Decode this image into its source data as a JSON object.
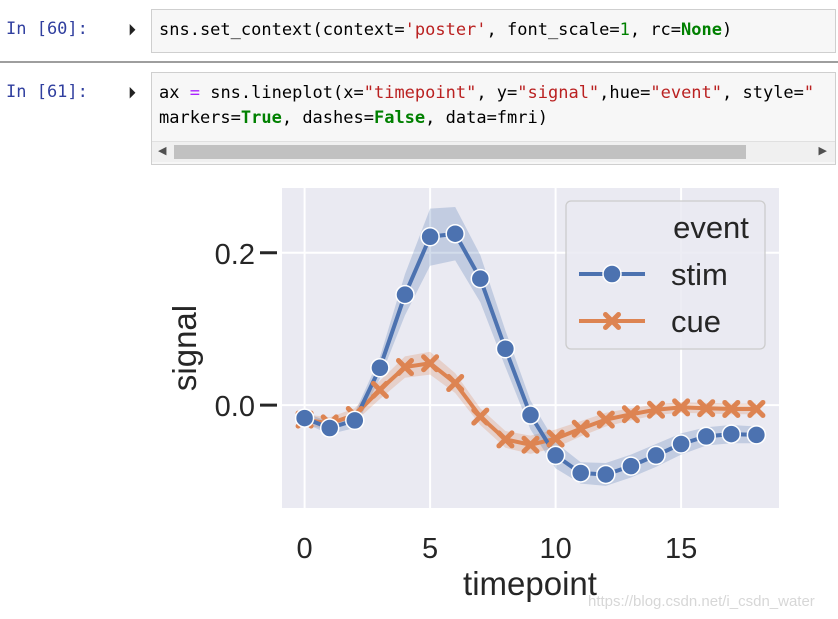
{
  "cells": [
    {
      "prompt": "In  [60]:",
      "code": [
        [
          [
            "sns.set_context(context=",
            ""
          ],
          [
            "'poster'",
            "str"
          ],
          [
            ", font_scale=",
            ""
          ],
          [
            "1",
            "num"
          ],
          [
            ", rc=",
            ""
          ],
          [
            "None",
            "kw"
          ],
          [
            ")",
            ""
          ]
        ]
      ]
    },
    {
      "prompt": "In  [61]:",
      "code": [
        [
          [
            "ax ",
            ""
          ],
          [
            "=",
            "op"
          ],
          [
            " sns.lineplot(x=",
            ""
          ],
          [
            "\"timepoint\"",
            "str"
          ],
          [
            ", y=",
            ""
          ],
          [
            "\"signal\"",
            "str"
          ],
          [
            ",hue=",
            ""
          ],
          [
            "\"event\"",
            "str"
          ],
          [
            ", style=",
            ""
          ],
          [
            "\"",
            "str"
          ]
        ],
        [
          [
            "markers=",
            ""
          ],
          [
            "True",
            "kw"
          ],
          [
            ", dashes=",
            ""
          ],
          [
            "False",
            "kw"
          ],
          [
            ", data=fmri)",
            ""
          ]
        ]
      ]
    }
  ],
  "scroll_left_arrow": "◀",
  "scroll_right_arrow": "▶",
  "run_icon": "⏵",
  "colors": {
    "stim": "#4c72b0",
    "cue": "#dd8452",
    "plot_bg": "#eaeaf2",
    "grid": "#ffffff"
  },
  "chart_data": {
    "type": "line",
    "title": "",
    "xlabel": "timepoint",
    "ylabel": "signal",
    "xlim": [
      -0.9,
      18.9
    ],
    "ylim": [
      -0.135,
      0.285
    ],
    "xticks": [
      0,
      5,
      10,
      15
    ],
    "xtick_labels": [
      "0",
      "5",
      "10",
      "15"
    ],
    "yticks": [
      0.0,
      0.2
    ],
    "ytick_labels": [
      "0.0",
      "0.2"
    ],
    "grid": true,
    "legend": {
      "title": "event",
      "placement": "top-right"
    },
    "x": [
      0,
      1,
      2,
      3,
      4,
      5,
      6,
      7,
      8,
      9,
      10,
      11,
      12,
      13,
      14,
      15,
      16,
      17,
      18
    ],
    "series": [
      {
        "name": "stim",
        "marker": "circle",
        "values": [
          -0.017,
          -0.03,
          -0.02,
          0.049,
          0.145,
          0.221,
          0.225,
          0.166,
          0.074,
          -0.013,
          -0.066,
          -0.089,
          -0.091,
          -0.08,
          -0.066,
          -0.051,
          -0.041,
          -0.038,
          -0.039
        ],
        "ci_low": [
          -0.024,
          -0.038,
          -0.03,
          0.035,
          0.118,
          0.183,
          0.19,
          0.135,
          0.05,
          -0.032,
          -0.083,
          -0.103,
          -0.106,
          -0.095,
          -0.081,
          -0.065,
          -0.053,
          -0.05,
          -0.05
        ],
        "ci_high": [
          -0.01,
          -0.022,
          -0.01,
          0.063,
          0.172,
          0.258,
          0.26,
          0.197,
          0.098,
          0.006,
          -0.049,
          -0.075,
          -0.076,
          -0.065,
          -0.051,
          -0.037,
          -0.029,
          -0.026,
          -0.028
        ]
      },
      {
        "name": "cue",
        "marker": "x",
        "values": [
          -0.019,
          -0.024,
          -0.013,
          0.02,
          0.05,
          0.055,
          0.029,
          -0.015,
          -0.045,
          -0.052,
          -0.044,
          -0.031,
          -0.019,
          -0.012,
          -0.006,
          -0.003,
          -0.004,
          -0.005,
          -0.005
        ],
        "ci_low": [
          -0.026,
          -0.032,
          -0.022,
          0.008,
          0.036,
          0.04,
          0.016,
          -0.026,
          -0.056,
          -0.064,
          -0.056,
          -0.041,
          -0.028,
          -0.02,
          -0.013,
          -0.01,
          -0.011,
          -0.012,
          -0.012
        ],
        "ci_high": [
          -0.012,
          -0.016,
          -0.004,
          0.032,
          0.064,
          0.07,
          0.042,
          -0.004,
          -0.034,
          -0.04,
          -0.032,
          -0.021,
          -0.01,
          -0.004,
          0.001,
          0.004,
          0.003,
          0.002,
          0.002
        ]
      }
    ]
  },
  "watermark": "https://blog.csdn.net/i_csdn_water"
}
